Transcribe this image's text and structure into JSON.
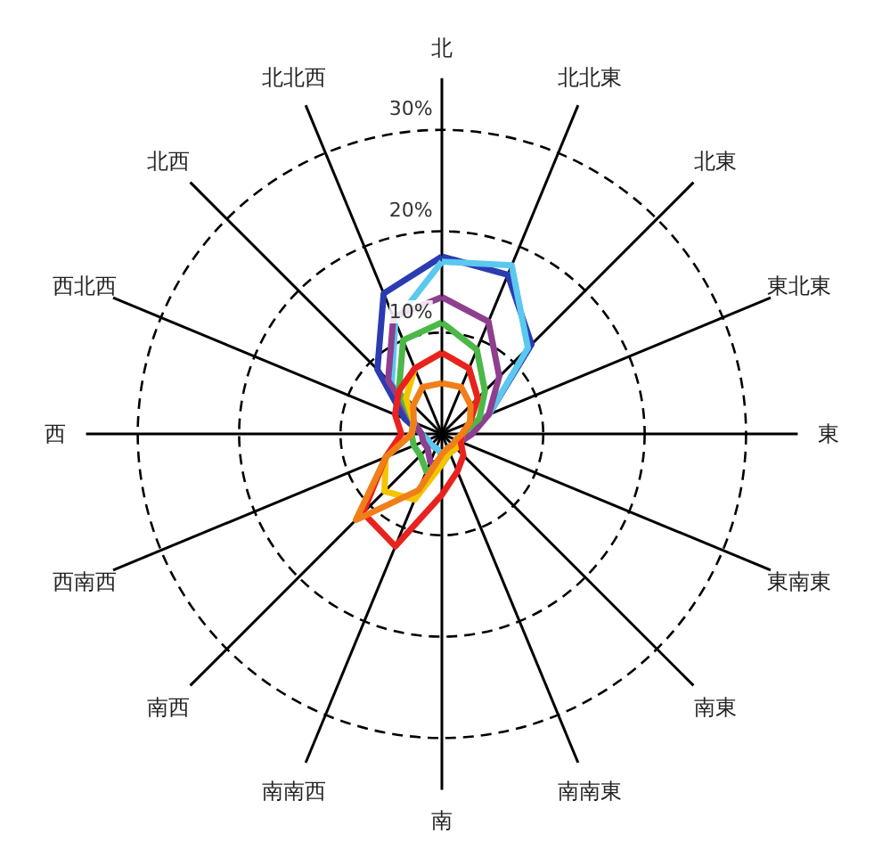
{
  "chart_data": {
    "type": "radar",
    "categories": [
      "北",
      "北北東",
      "北東",
      "東北東",
      "東",
      "東南東",
      "南東",
      "南南東",
      "南",
      "南南西",
      "南西",
      "西南西",
      "西",
      "西北西",
      "北西",
      "北北西"
    ],
    "ylim": [
      0,
      30
    ],
    "yticks": [
      {
        "value": 10,
        "label": "10%"
      },
      {
        "value": 20,
        "label": "20%"
      },
      {
        "value": 30,
        "label": "30%"
      }
    ],
    "grid": true,
    "marker": "none",
    "line_style": "solid",
    "series": [
      {
        "color": "#2a3cb0",
        "values": [
          17.5,
          17,
          12.5,
          5,
          2,
          1.5,
          1.5,
          1.5,
          2,
          1.5,
          1.5,
          1.5,
          2,
          4,
          9,
          15
        ]
      },
      {
        "color": "#5bc8ef",
        "values": [
          17,
          18,
          12,
          5,
          2,
          1.5,
          1.5,
          1.5,
          2,
          1.5,
          1.5,
          1.5,
          2,
          3,
          7,
          12
        ]
      },
      {
        "color": "#8e3f8e",
        "values": [
          13.5,
          12,
          8,
          5,
          3,
          2,
          2,
          2,
          3,
          3,
          2,
          2,
          2,
          3,
          7.5,
          12.5
        ]
      },
      {
        "color": "#4cb848",
        "values": [
          11,
          9,
          6,
          4,
          2,
          2,
          2,
          2,
          3,
          4,
          3,
          3,
          3,
          3,
          6,
          10
        ]
      },
      {
        "color": "#f5c400",
        "values": [
          8,
          7,
          5,
          3,
          2,
          2,
          2,
          2,
          3,
          7,
          8,
          6,
          3,
          3,
          5,
          7
        ]
      },
      {
        "color": "#e8231f",
        "values": [
          8,
          7,
          5,
          3,
          2,
          2,
          3,
          4,
          6,
          12,
          11,
          6,
          4,
          5,
          6,
          7
        ]
      },
      {
        "color": "#f07f1a",
        "values": [
          5,
          5,
          4,
          3,
          2,
          1.5,
          1.5,
          1.5,
          2,
          6,
          12,
          6,
          3,
          3,
          4,
          5
        ]
      }
    ]
  }
}
